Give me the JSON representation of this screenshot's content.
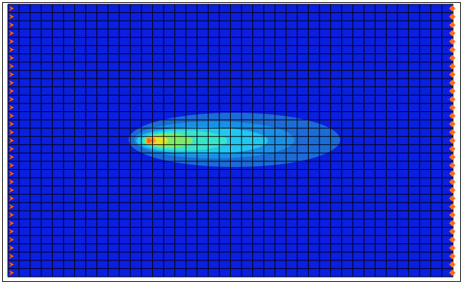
{
  "field": {
    "grid_columns": 40,
    "grid_rows": 33,
    "background_color": "#0A1FE0",
    "grid_line_color": "#000000",
    "boundary_marker_color": "#FF6A1A",
    "contour_colors": [
      "#0A1FE0",
      "#1C6CD8",
      "#1A8FE6",
      "#22C7F0",
      "#37E6C9",
      "#7FEA6A",
      "#E8E030",
      "#FFA020"
    ]
  },
  "left_boundary": {
    "marker_count": 33,
    "marker_shape": "arrow-right"
  },
  "right_boundary": {
    "marker_count": 33,
    "marker_shape": "diamond"
  },
  "plume": {
    "source_marker": "source-arrow"
  }
}
